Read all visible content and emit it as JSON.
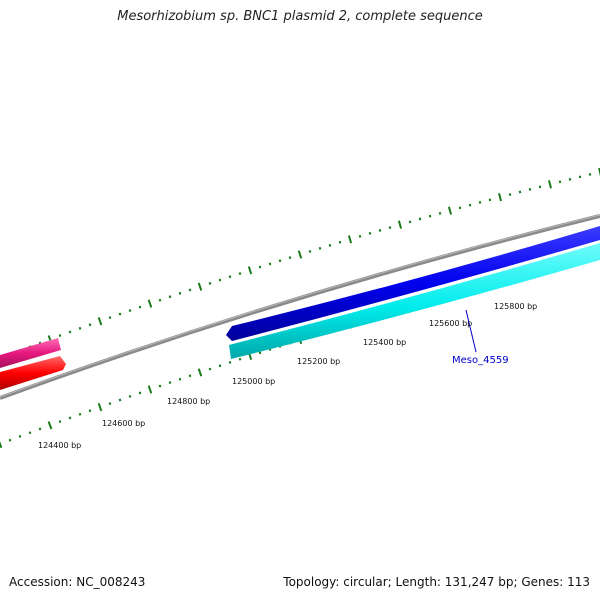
{
  "map": {
    "title": "Mesorhizobium sp. BNC1 plasmid 2, complete sequence",
    "accession": "Accession: NC_008243",
    "summary": "Topology: circular; Length: 131,247 bp; Genes: 113"
  },
  "scale_labels": [
    "124400 bp",
    "124600 bp",
    "124800 bp",
    "125000 bp",
    "125200 bp",
    "125400 bp",
    "125600 bp",
    "125800 bp"
  ],
  "gene_labels": [
    "Meso_4559"
  ],
  "colors": {
    "backbone": "#808080",
    "tick": "#1a7a1a",
    "gene_blue": "#0000e6",
    "gene_cyan": "#00e6e6",
    "gene_pink": "#e6197f",
    "gene_red": "#ff0000",
    "label_line": "#0000c8"
  }
}
